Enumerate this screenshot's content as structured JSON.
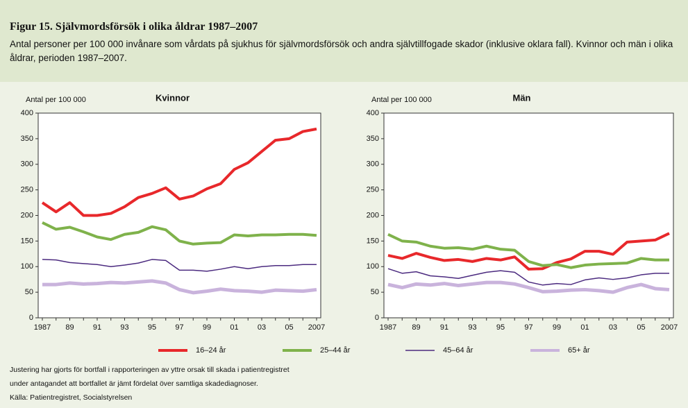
{
  "title": "Figur 15. Självmordsförsök i olika åldrar 1987–2007",
  "subtitle": "Antal personer per 100 000 invånare som vårdats på sjukhus för självmordsförsök och andra självtillfogade skador (inklusive oklara fall). Kvinnor och män i olika åldrar, perioden 1987–2007.",
  "notes": [
    "Justering har gjorts för bortfall i rapporteringen av yttre orsak till skada i patientregistret",
    "under antagandet att bortfallet är jämt fördelat över samtliga skadediagnoser.",
    "Källa: Patientregistret, Socialstyrelsen"
  ],
  "chart_data": [
    {
      "type": "line",
      "title": "Kvinnor",
      "y_label": "Antal per 100 000",
      "categories": [
        "1987",
        null,
        "89",
        null,
        "91",
        null,
        "93",
        null,
        "95",
        null,
        "97",
        null,
        "99",
        null,
        "01",
        null,
        "03",
        null,
        "05",
        null,
        "2007"
      ],
      "ylim": [
        0,
        400
      ],
      "yticks": [
        0,
        50,
        100,
        150,
        200,
        250,
        300,
        350,
        400
      ],
      "series": [
        {
          "name": "16–24 år",
          "color": "#e8282b",
          "values": [
            225,
            207,
            225,
            200,
            200,
            204,
            217,
            235,
            243,
            254,
            232,
            238,
            252,
            262,
            290,
            303,
            325,
            347,
            350,
            364,
            369
          ]
        },
        {
          "name": "25–44 år",
          "color": "#7fb24b",
          "values": [
            186,
            173,
            177,
            168,
            158,
            153,
            163,
            167,
            178,
            172,
            150,
            144,
            146,
            147,
            162,
            160,
            162,
            162,
            163,
            163,
            161
          ]
        },
        {
          "name": "45–64 år",
          "color": "#4b2a7f",
          "values": [
            114,
            113,
            108,
            106,
            104,
            100,
            103,
            107,
            114,
            112,
            93,
            93,
            91,
            95,
            100,
            96,
            100,
            102,
            102,
            104,
            104
          ]
        },
        {
          "name": "65+ år",
          "color": "#c9b3dc",
          "values": [
            65,
            65,
            68,
            66,
            67,
            69,
            68,
            70,
            72,
            68,
            55,
            49,
            52,
            56,
            53,
            52,
            50,
            54,
            53,
            52,
            55
          ]
        }
      ]
    },
    {
      "type": "line",
      "title": "Män",
      "y_label": "Antal per 100 000",
      "categories": [
        "1987",
        null,
        "89",
        null,
        "91",
        null,
        "93",
        null,
        "95",
        null,
        "97",
        null,
        "99",
        null,
        "01",
        null,
        "03",
        null,
        "05",
        null,
        "2007"
      ],
      "ylim": [
        0,
        400
      ],
      "yticks": [
        0,
        50,
        100,
        150,
        200,
        250,
        300,
        350,
        400
      ],
      "series": [
        {
          "color": "#e8282b",
          "values": [
            122,
            116,
            126,
            118,
            112,
            114,
            110,
            116,
            113,
            119,
            95,
            96,
            108,
            115,
            130,
            130,
            124,
            148,
            150,
            152,
            165
          ]
        },
        {
          "color": "#7fb24b",
          "values": [
            163,
            150,
            148,
            140,
            136,
            137,
            134,
            140,
            134,
            132,
            110,
            102,
            104,
            98,
            103,
            105,
            106,
            107,
            116,
            113,
            113
          ]
        },
        {
          "color": "#4b2a7f",
          "values": [
            96,
            87,
            90,
            82,
            80,
            77,
            83,
            89,
            92,
            89,
            70,
            64,
            67,
            65,
            74,
            78,
            75,
            78,
            84,
            87,
            87
          ]
        },
        {
          "color": "#c9b3dc",
          "values": [
            65,
            59,
            66,
            64,
            67,
            63,
            66,
            69,
            69,
            66,
            59,
            51,
            52,
            54,
            55,
            53,
            50,
            59,
            65,
            57,
            55
          ]
        }
      ]
    }
  ]
}
